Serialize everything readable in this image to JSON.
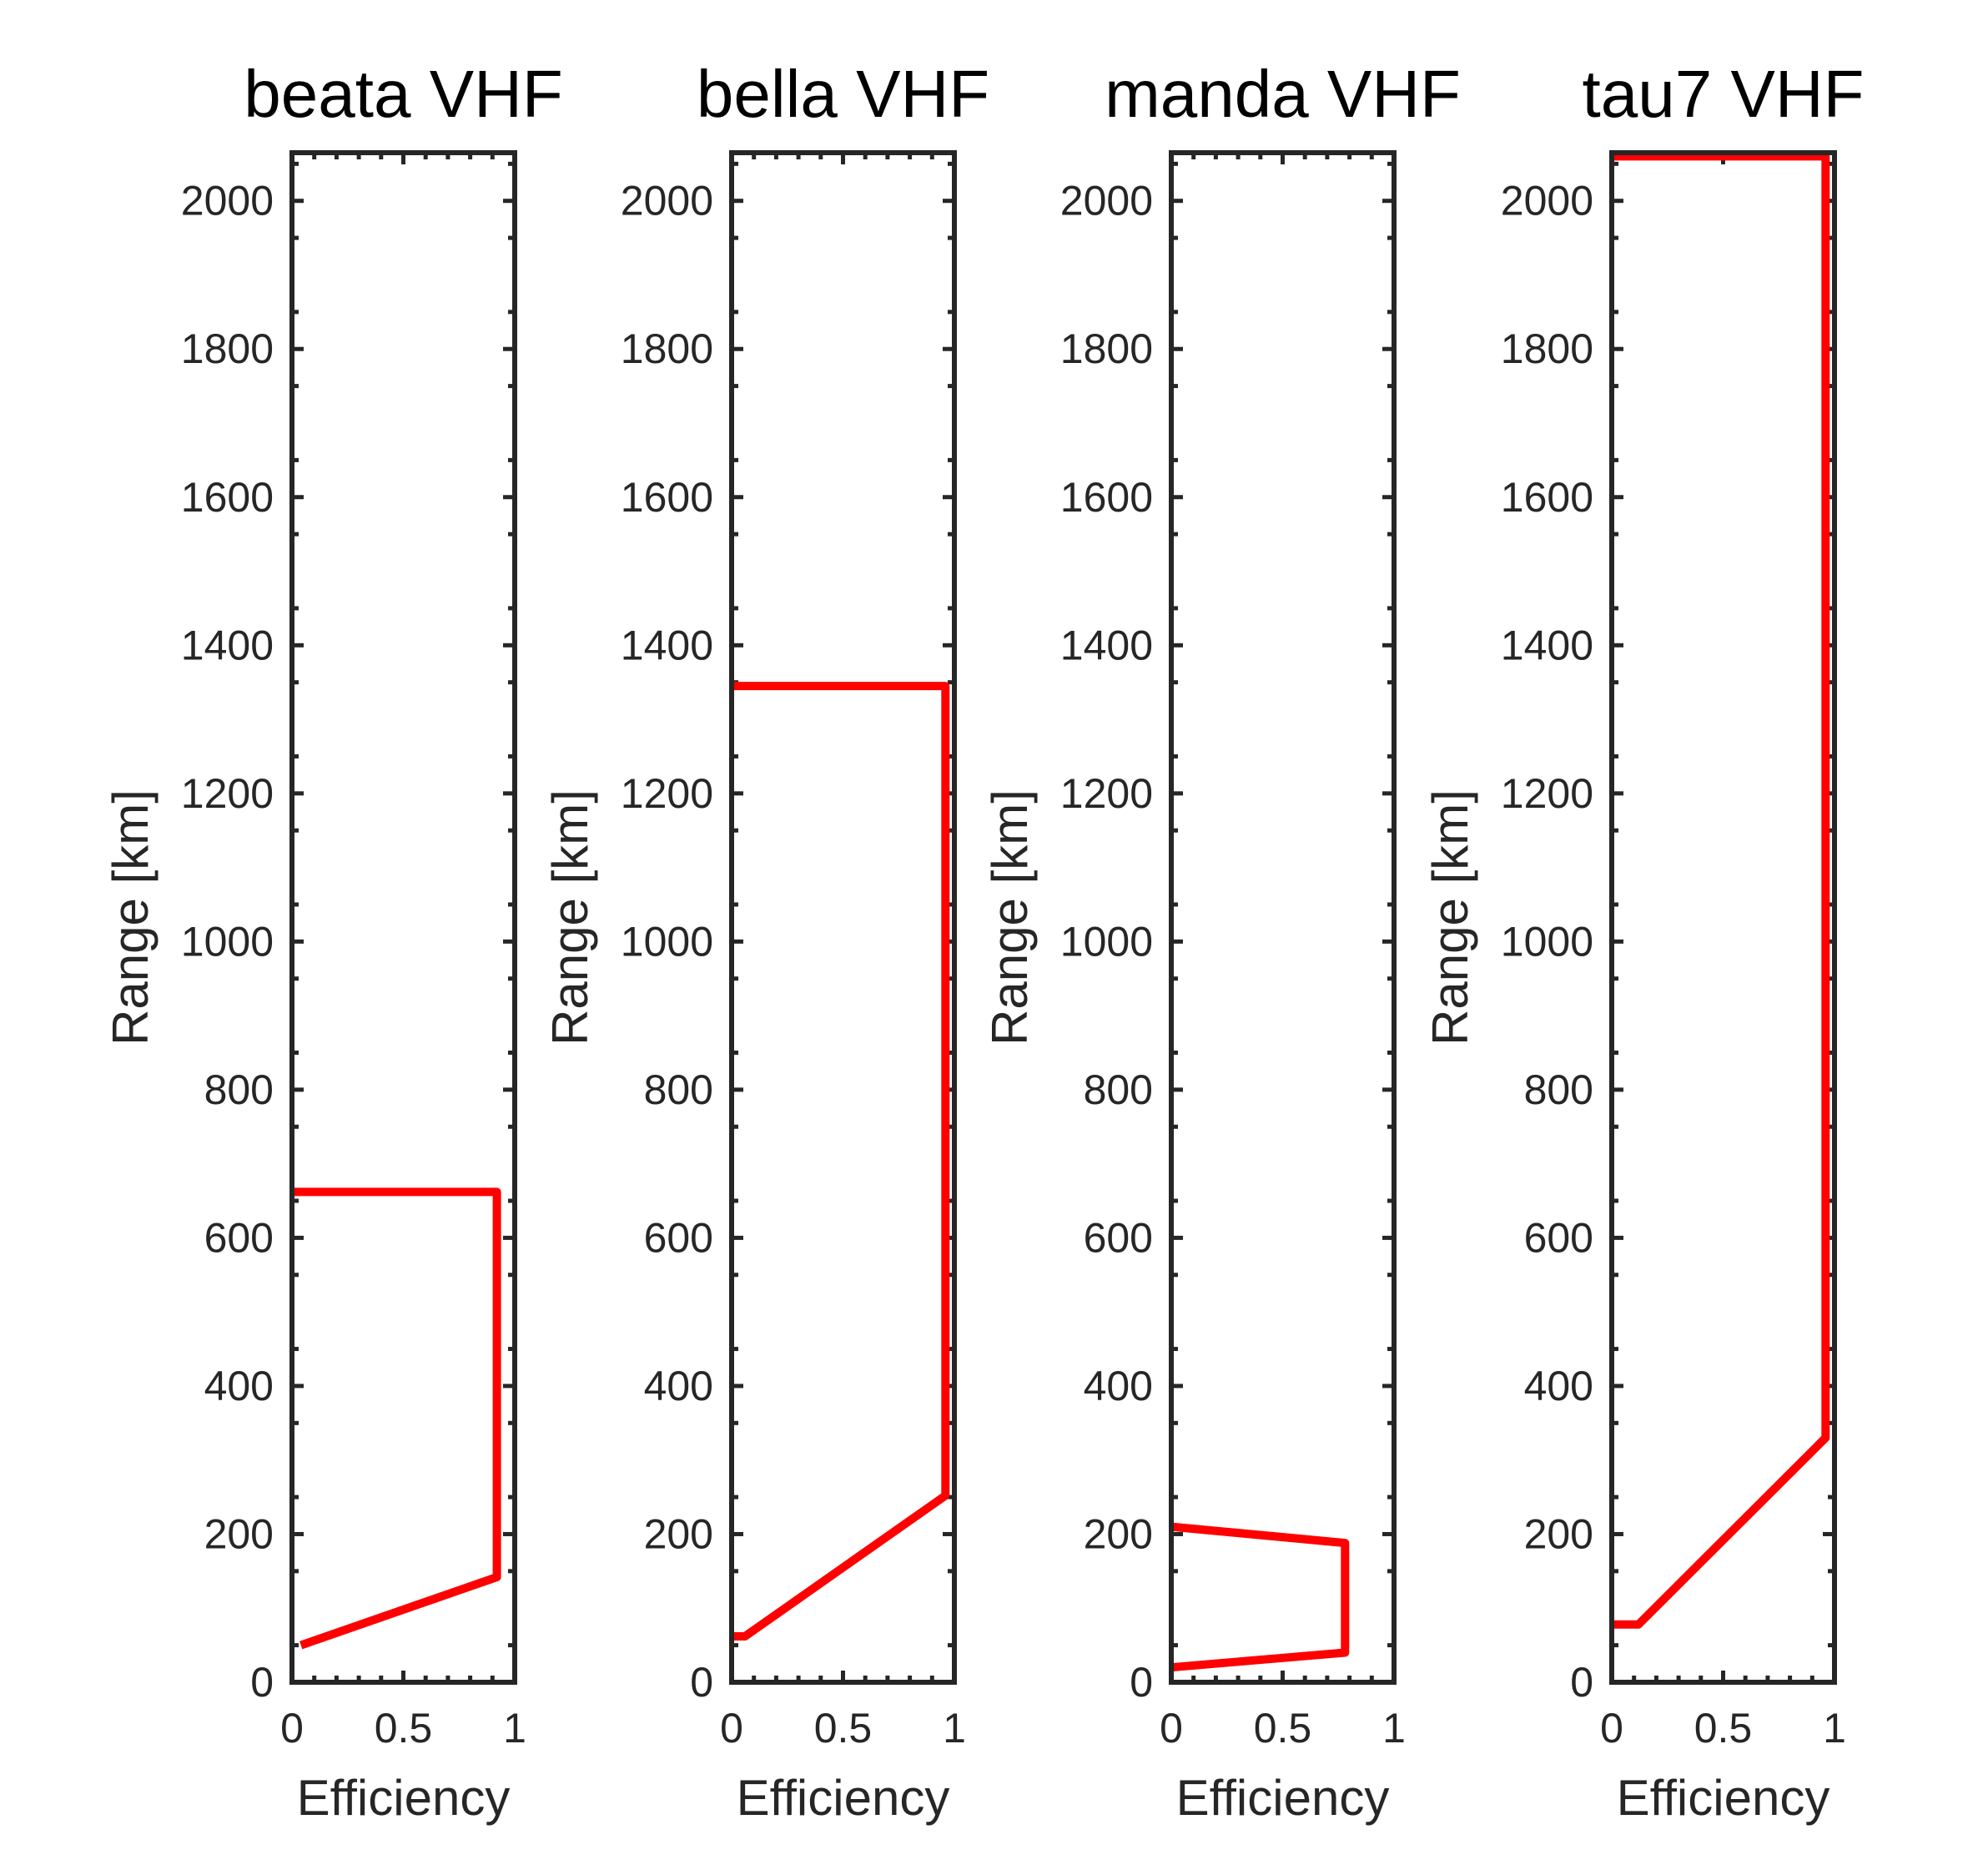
{
  "figure": {
    "background": "#ffffff",
    "axis_color": "#262626",
    "line_color": "#ff0000"
  },
  "chart_data": [
    {
      "type": "line",
      "title": "beata VHF",
      "xlabel": "Efficiency",
      "ylabel": "Range [km]",
      "xlim": [
        0,
        1
      ],
      "ylim": [
        0,
        2065
      ],
      "xticks": [
        "0",
        "0.5",
        "1"
      ],
      "yticks": [
        "0",
        "200",
        "400",
        "600",
        "800",
        "1000",
        "1200",
        "1400",
        "1600",
        "1800",
        "2000"
      ],
      "grid": false,
      "series": [
        {
          "x": [
            0.04,
            0.92,
            0.92,
            0.0
          ],
          "y": [
            50,
            142,
            662,
            662
          ]
        }
      ]
    },
    {
      "type": "line",
      "title": "bella VHF",
      "xlabel": "Efficiency",
      "ylabel": "Range [km]",
      "xlim": [
        0,
        1
      ],
      "ylim": [
        0,
        2065
      ],
      "xticks": [
        "0",
        "0.5",
        "1"
      ],
      "yticks": [
        "0",
        "200",
        "400",
        "600",
        "800",
        "1000",
        "1200",
        "1400",
        "1600",
        "1800",
        "2000"
      ],
      "grid": false,
      "series": [
        {
          "x": [
            0.0,
            0.06,
            0.96,
            0.96,
            0.0
          ],
          "y": [
            62,
            62,
            252,
            1345,
            1345
          ]
        }
      ]
    },
    {
      "type": "line",
      "title": "manda VHF",
      "xlabel": "Efficiency",
      "ylabel": "Range [km]",
      "xlim": [
        0,
        1
      ],
      "ylim": [
        0,
        2065
      ],
      "xticks": [
        "0",
        "0.5",
        "1"
      ],
      "yticks": [
        "0",
        "200",
        "400",
        "600",
        "800",
        "1000",
        "1200",
        "1400",
        "1600",
        "1800",
        "2000"
      ],
      "grid": false,
      "series": [
        {
          "x": [
            0.0,
            0.78,
            0.78,
            0.0
          ],
          "y": [
            20,
            40,
            188,
            210
          ]
        }
      ]
    },
    {
      "type": "line",
      "title": "tau7 VHF",
      "xlabel": "Efficiency",
      "ylabel": "Range [km]",
      "xlim": [
        0,
        1
      ],
      "ylim": [
        0,
        2065
      ],
      "xticks": [
        "0",
        "0.5",
        "1"
      ],
      "yticks": [
        "0",
        "200",
        "400",
        "600",
        "800",
        "1000",
        "1200",
        "1400",
        "1600",
        "1800",
        "2000"
      ],
      "grid": false,
      "series": [
        {
          "x": [
            0.0,
            0.12,
            0.96,
            0.96,
            0.0
          ],
          "y": [
            78,
            78,
            330,
            2060,
            2060
          ]
        }
      ]
    }
  ]
}
